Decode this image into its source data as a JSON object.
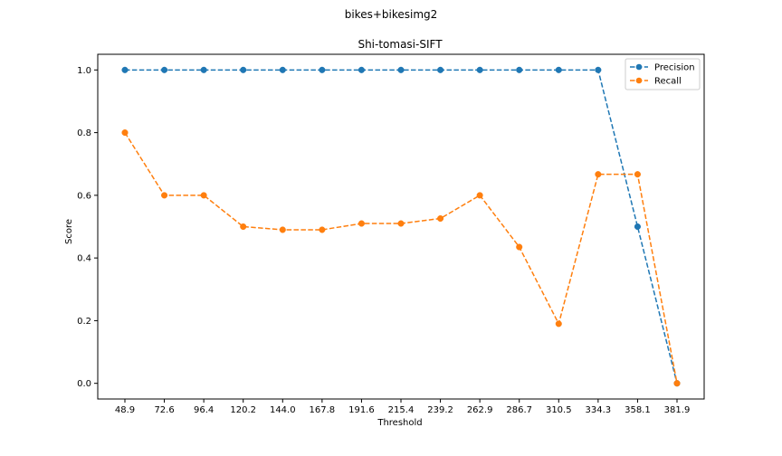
{
  "figure": {
    "suptitle": "bikes+bikesimg2"
  },
  "chart_data": {
    "type": "line",
    "title": "Shi-tomasi-SIFT",
    "xlabel": "Threshold",
    "ylabel": "Score",
    "categories": [
      "48.9",
      "72.6",
      "96.4",
      "120.2",
      "144.0",
      "167.8",
      "191.6",
      "215.4",
      "239.2",
      "262.9",
      "286.7",
      "310.5",
      "334.3",
      "358.1",
      "381.9"
    ],
    "ylim": [
      -0.05,
      1.05
    ],
    "yticks": [
      0.0,
      0.2,
      0.4,
      0.6,
      0.8,
      1.0
    ],
    "ytick_labels": [
      "0.0",
      "0.2",
      "0.4",
      "0.6",
      "0.8",
      "1.0"
    ],
    "grid": false,
    "legend_position": "top-right",
    "series": [
      {
        "name": "Precision",
        "color": "#1f77b4",
        "linestyle": "dashed",
        "marker": "circle",
        "values": [
          1.0,
          1.0,
          1.0,
          1.0,
          1.0,
          1.0,
          1.0,
          1.0,
          1.0,
          1.0,
          1.0,
          1.0,
          1.0,
          0.5,
          0.0
        ]
      },
      {
        "name": "Recall",
        "color": "#ff7f0e",
        "linestyle": "dashed",
        "marker": "circle",
        "values": [
          0.8,
          0.6,
          0.6,
          0.5,
          0.49,
          0.49,
          0.51,
          0.51,
          0.526,
          0.6,
          0.435,
          0.19,
          0.667,
          0.667,
          0.0
        ]
      }
    ]
  }
}
